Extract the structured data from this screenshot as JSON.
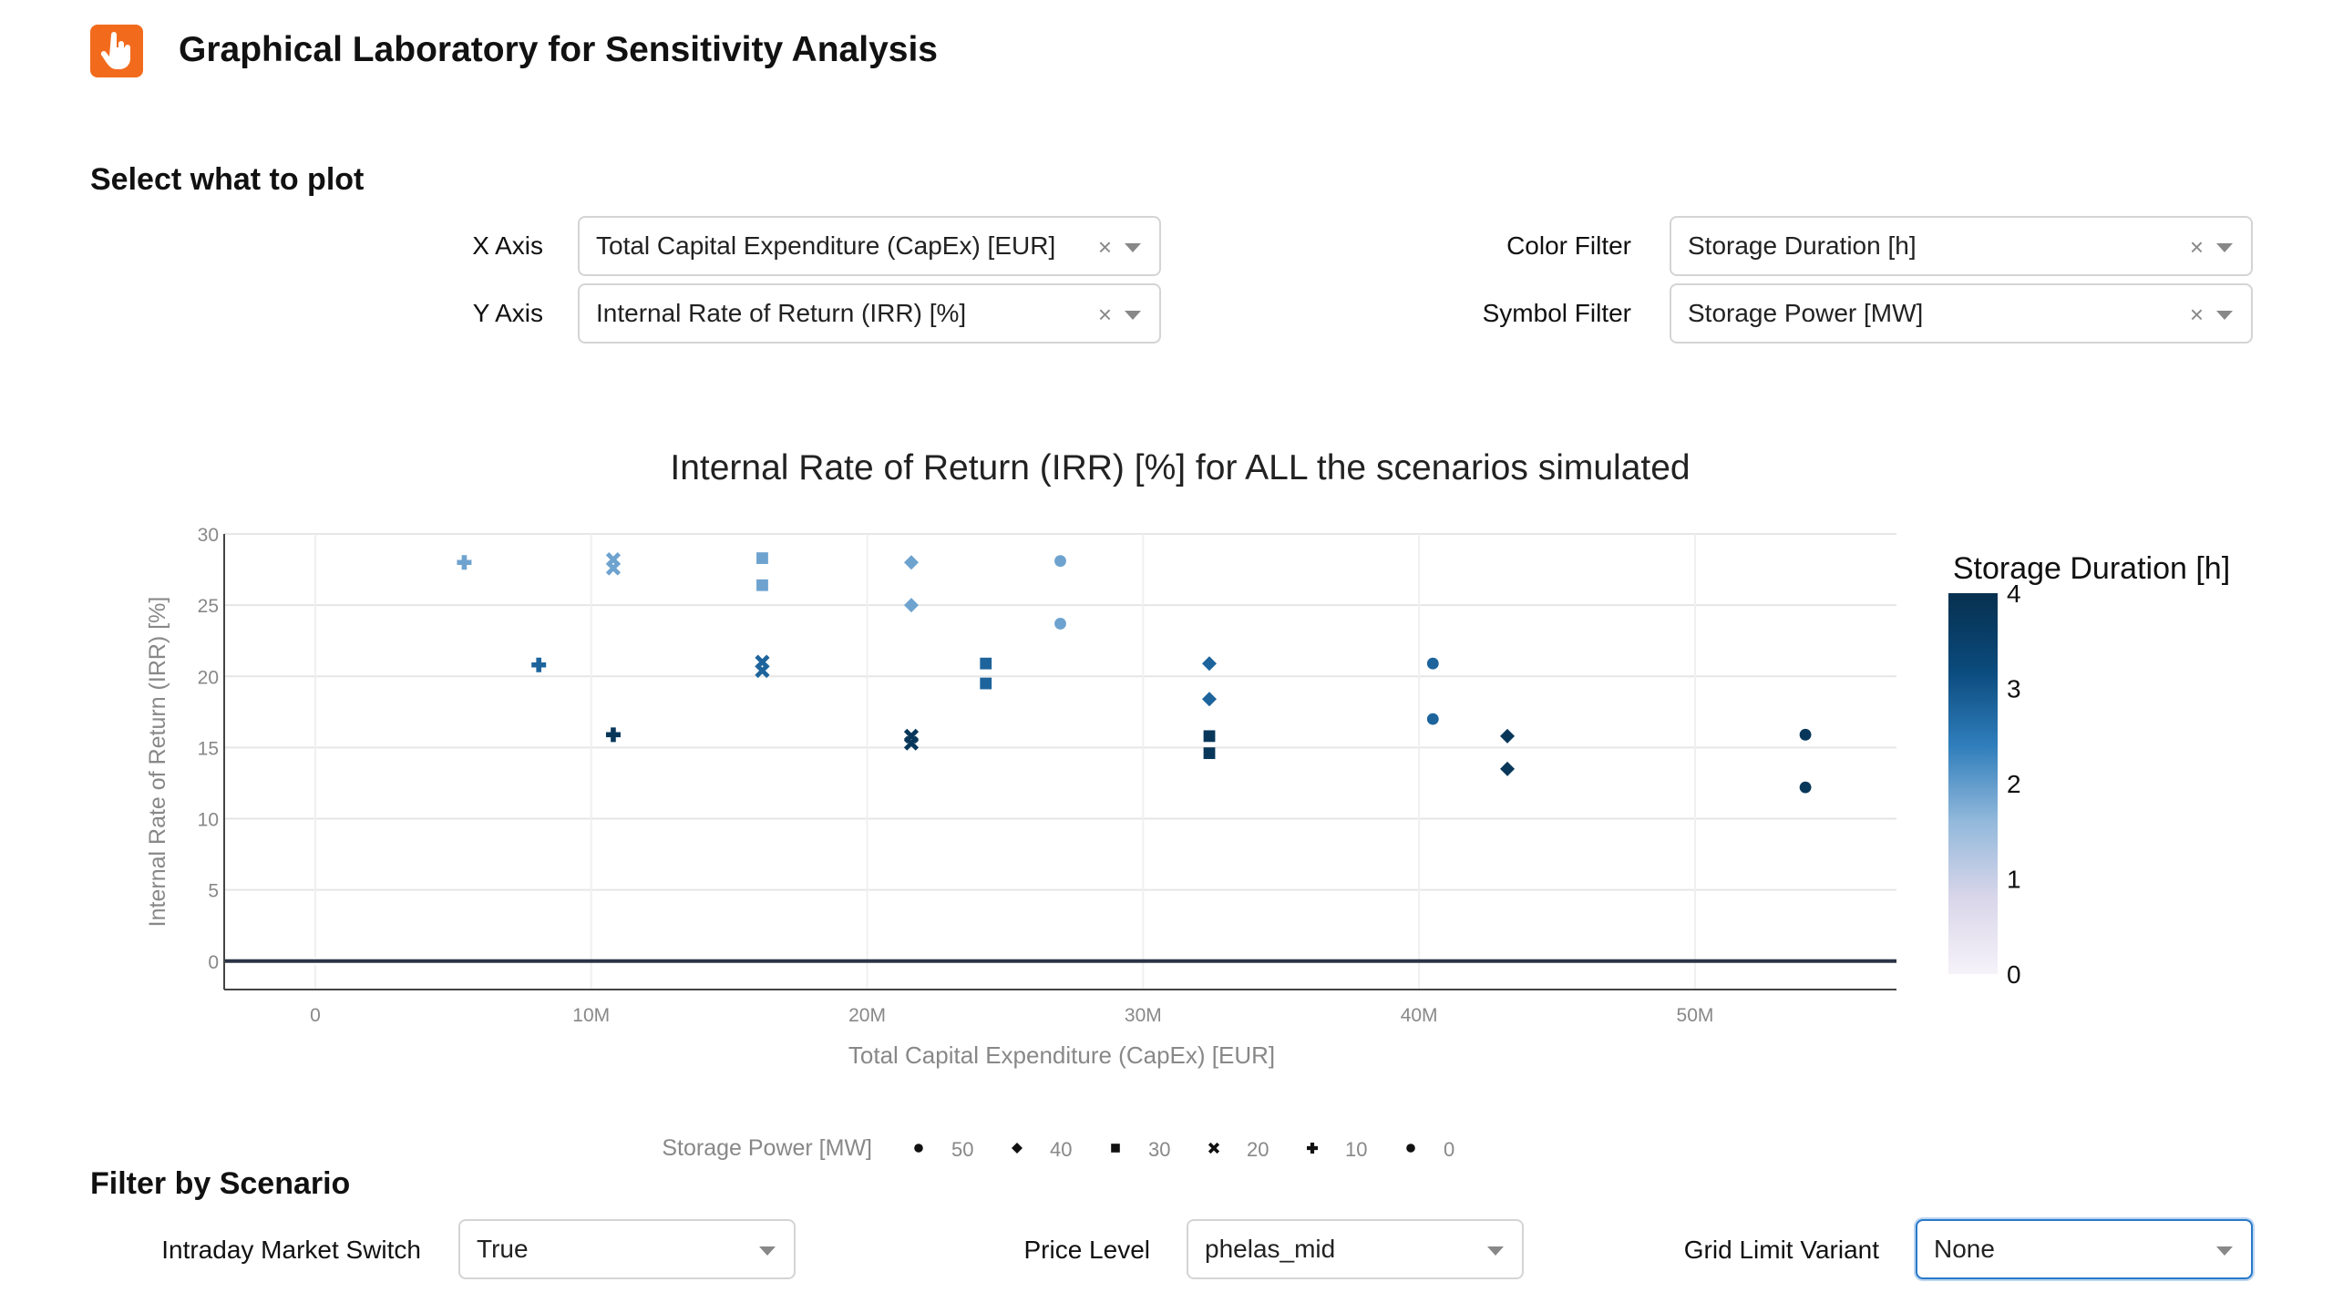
{
  "app": {
    "title": "Graphical Laboratory for Sensitivity Analysis"
  },
  "plot_controls": {
    "section_title": "Select what to plot",
    "x_axis": {
      "label": "X Axis",
      "value": "Total Capital Expenditure (CapEx) [EUR]"
    },
    "y_axis": {
      "label": "Y Axis",
      "value": "Internal Rate of Return (IRR) [%]"
    },
    "color_filter": {
      "label": "Color Filter",
      "value": "Storage Duration [h]"
    },
    "symbol_filter": {
      "label": "Symbol Filter",
      "value": "Storage Power [MW]"
    },
    "clear_glyph": "×"
  },
  "scenario_filters": {
    "section_title": "Filter by Scenario",
    "intraday": {
      "label": "Intraday Market Switch",
      "value": "True"
    },
    "price_level": {
      "label": "Price Level",
      "value": "phelas_mid"
    },
    "grid_limit": {
      "label": "Grid Limit Variant",
      "value": "None"
    }
  },
  "chart_data": {
    "type": "scatter",
    "title": "Internal Rate of Return (IRR) [%] for ALL the scenarios simulated",
    "xlabel": "Total Capital Expenditure (CapEx) [EUR]",
    "ylabel": "Internal Rate of Return (IRR) [%]",
    "xlim": [
      -3300000,
      57300000
    ],
    "ylim": [
      -2,
      30
    ],
    "x_ticks": [
      0,
      10000000,
      20000000,
      30000000,
      40000000,
      50000000
    ],
    "x_tick_labels": [
      "0",
      "10M",
      "20M",
      "30M",
      "40M",
      "50M"
    ],
    "y_ticks": [
      0,
      5,
      10,
      15,
      20,
      25,
      30
    ],
    "y_tick_labels": [
      "0",
      "5",
      "10",
      "15",
      "20",
      "25",
      "30"
    ],
    "grid": true,
    "colorbar": {
      "title": "Storage Duration [h]",
      "range": [
        0,
        4
      ],
      "ticks": [
        0,
        1,
        2,
        3,
        4
      ],
      "tick_labels": [
        "0",
        "1",
        "2",
        "3",
        "4"
      ],
      "colors": [
        "#f6f2f9",
        "#d9d6ea",
        "#93b9db",
        "#2f7ebc",
        "#0a4a7c",
        "#07304f"
      ]
    },
    "symbol_legend": {
      "title": "Storage Power [MW]",
      "items": [
        {
          "label": "50",
          "symbol": "circle"
        },
        {
          "label": "40",
          "symbol": "diamond"
        },
        {
          "label": "30",
          "symbol": "square"
        },
        {
          "label": "20",
          "symbol": "x"
        },
        {
          "label": "10",
          "symbol": "cross"
        },
        {
          "label": "0",
          "symbol": "circle"
        }
      ]
    },
    "points": [
      {
        "x": 5400000,
        "y": 28,
        "duration": 1.9,
        "symbol": "cross"
      },
      {
        "x": 10800000,
        "y": 28.2,
        "duration": 1.9,
        "symbol": "x"
      },
      {
        "x": 10800000,
        "y": 27.6,
        "duration": 1.9,
        "symbol": "x"
      },
      {
        "x": 16200000,
        "y": 28.3,
        "duration": 1.9,
        "symbol": "square"
      },
      {
        "x": 16200000,
        "y": 26.4,
        "duration": 1.9,
        "symbol": "square"
      },
      {
        "x": 21600000,
        "y": 28,
        "duration": 1.9,
        "symbol": "diamond"
      },
      {
        "x": 21600000,
        "y": 25,
        "duration": 1.9,
        "symbol": "diamond"
      },
      {
        "x": 27000000,
        "y": 28.1,
        "duration": 1.9,
        "symbol": "circle"
      },
      {
        "x": 27000000,
        "y": 23.7,
        "duration": 1.9,
        "symbol": "circle"
      },
      {
        "x": 8100000,
        "y": 20.8,
        "duration": 2.8,
        "symbol": "cross"
      },
      {
        "x": 16200000,
        "y": 21,
        "duration": 2.8,
        "symbol": "x"
      },
      {
        "x": 16200000,
        "y": 20.4,
        "duration": 2.8,
        "symbol": "x"
      },
      {
        "x": 24300000,
        "y": 20.9,
        "duration": 2.8,
        "symbol": "square"
      },
      {
        "x": 24300000,
        "y": 19.5,
        "duration": 2.8,
        "symbol": "square"
      },
      {
        "x": 32400000,
        "y": 20.9,
        "duration": 2.8,
        "symbol": "diamond"
      },
      {
        "x": 32400000,
        "y": 18.4,
        "duration": 2.8,
        "symbol": "diamond"
      },
      {
        "x": 40500000,
        "y": 20.9,
        "duration": 2.8,
        "symbol": "circle"
      },
      {
        "x": 40500000,
        "y": 17,
        "duration": 2.8,
        "symbol": "circle"
      },
      {
        "x": 10800000,
        "y": 15.9,
        "duration": 3.8,
        "symbol": "cross"
      },
      {
        "x": 21600000,
        "y": 15.8,
        "duration": 3.8,
        "symbol": "x"
      },
      {
        "x": 21600000,
        "y": 15.3,
        "duration": 3.8,
        "symbol": "x"
      },
      {
        "x": 32400000,
        "y": 15.8,
        "duration": 3.8,
        "symbol": "square"
      },
      {
        "x": 32400000,
        "y": 14.6,
        "duration": 3.8,
        "symbol": "square"
      },
      {
        "x": 43200000,
        "y": 15.8,
        "duration": 3.8,
        "symbol": "diamond"
      },
      {
        "x": 43200000,
        "y": 13.5,
        "duration": 3.8,
        "symbol": "diamond"
      },
      {
        "x": 54000000,
        "y": 15.9,
        "duration": 3.8,
        "symbol": "circle"
      },
      {
        "x": 54000000,
        "y": 12.2,
        "duration": 3.8,
        "symbol": "circle"
      }
    ],
    "zero_line": {
      "y": 0,
      "color": "#2a3445"
    }
  }
}
